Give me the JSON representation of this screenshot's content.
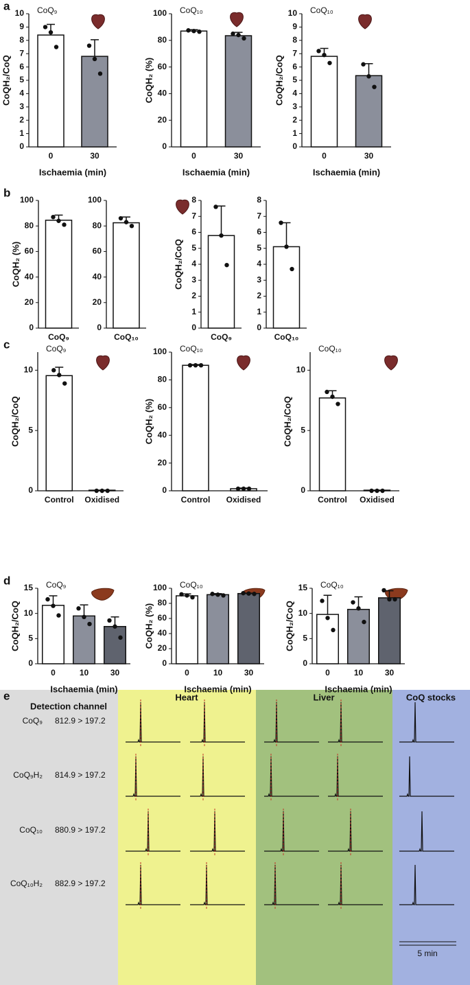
{
  "chart_data": [
    {
      "type": "bar",
      "panel": "a",
      "annotation": "CoQ₉",
      "icon": "heart",
      "ylabel": "CoQH₂/CoQ",
      "xlabel": "Ischaemia (min)",
      "categories": [
        "0",
        "30"
      ],
      "values": [
        8.4,
        6.8
      ],
      "errors": [
        0.8,
        1.25
      ],
      "points": [
        [
          9.0,
          8.6,
          7.5
        ],
        [
          7.6,
          6.6,
          5.5
        ]
      ],
      "colors": [
        "#ffffff",
        "#8b8f9b"
      ],
      "ylim": [
        0,
        10
      ],
      "yticks": [
        0,
        1,
        2,
        3,
        4,
        5,
        6,
        7,
        8,
        9,
        10
      ]
    },
    {
      "type": "bar",
      "annotation": "CoQ₁₀",
      "icon": "heart",
      "ylabel": "CoQH₂ (%)",
      "xlabel": "Ischaemia (min)",
      "categories": [
        "0",
        "30"
      ],
      "values": [
        87,
        83.5
      ],
      "errors": [
        1,
        2.5
      ],
      "points": [
        [
          87.5,
          87,
          86.5
        ],
        [
          85,
          84,
          81.5
        ]
      ],
      "colors": [
        "#ffffff",
        "#8b8f9b"
      ],
      "ylim": [
        0,
        100
      ],
      "yticks": [
        0,
        20,
        40,
        60,
        80,
        100
      ]
    },
    {
      "type": "bar",
      "annotation": "CoQ₁₀",
      "icon": "heart",
      "ylabel": "CoQH₂/CoQ",
      "xlabel": "Ischaemia (min)",
      "categories": [
        "0",
        "30"
      ],
      "values": [
        6.8,
        5.35
      ],
      "errors": [
        0.6,
        0.9
      ],
      "points": [
        [
          7.2,
          6.9,
          6.3
        ],
        [
          6.2,
          5.3,
          4.5
        ]
      ],
      "colors": [
        "#ffffff",
        "#8b8f9b"
      ],
      "ylim": [
        0,
        10
      ],
      "yticks": [
        0,
        1,
        2,
        3,
        4,
        5,
        6,
        7,
        8,
        9,
        10
      ]
    },
    {
      "type": "bar",
      "panel": "b",
      "ylabel": "CoQH₂ (%)",
      "categories": [
        "CoQ₉"
      ],
      "values": [
        84.5
      ],
      "errors": [
        4
      ],
      "points": [
        [
          87,
          84,
          81
        ]
      ],
      "colors": [
        "#ffffff"
      ],
      "ylim": [
        0,
        100
      ],
      "yticks": [
        0,
        20,
        40,
        60,
        80,
        100
      ]
    },
    {
      "type": "bar",
      "icon": "heart",
      "categories": [
        "CoQ₁₀"
      ],
      "values": [
        82.5
      ],
      "errors": [
        4.5
      ],
      "points": [
        [
          86,
          83,
          80
        ]
      ],
      "colors": [
        "#ffffff"
      ],
      "ylim": [
        0,
        100
      ],
      "yticks": [
        0,
        20,
        40,
        60,
        80,
        100
      ]
    },
    {
      "type": "bar",
      "ylabel": "CoQH₂/CoQ",
      "categories": [
        "CoQ₉"
      ],
      "values": [
        5.8
      ],
      "errors": [
        1.85
      ],
      "points": [
        [
          7.6,
          5.8,
          3.95
        ]
      ],
      "colors": [
        "#ffffff"
      ],
      "ylim": [
        0,
        8
      ],
      "yticks": [
        0,
        1,
        2,
        3,
        4,
        5,
        6,
        7,
        8
      ]
    },
    {
      "type": "bar",
      "categories": [
        "CoQ₁₀"
      ],
      "values": [
        5.1
      ],
      "errors": [
        1.5
      ],
      "points": [
        [
          6.6,
          5.1,
          3.7
        ]
      ],
      "colors": [
        "#ffffff"
      ],
      "ylim": [
        0,
        8
      ],
      "yticks": [
        0,
        1,
        2,
        3,
        4,
        5,
        6,
        7,
        8
      ]
    },
    {
      "type": "bar",
      "panel": "c",
      "annotation": "CoQ₉",
      "icon": "heart",
      "ylabel": "CoQH₂/CoQ",
      "categories": [
        "Control",
        "Oxidised"
      ],
      "values": [
        9.55,
        0.05
      ],
      "errors": [
        0.7,
        0
      ],
      "points": [
        [
          10,
          9.6,
          8.9
        ],
        [
          0,
          0,
          0
        ]
      ],
      "colors": [
        "#ffffff",
        "#ffffff"
      ],
      "ylim": [
        0,
        11.5
      ],
      "yticks": [
        0,
        5,
        10
      ]
    },
    {
      "type": "bar",
      "annotation": "CoQ₁₀",
      "icon": "heart",
      "ylabel": "CoQH₂ (%)",
      "categories": [
        "Control",
        "Oxidised"
      ],
      "values": [
        90.5,
        1.5
      ],
      "errors": [
        0.5,
        0.5
      ],
      "points": [
        [
          90.5,
          90.5,
          90.5
        ],
        [
          1.5,
          1.5,
          1.5
        ]
      ],
      "colors": [
        "#ffffff",
        "#ffffff"
      ],
      "ylim": [
        0,
        100
      ],
      "yticks": [
        0,
        20,
        40,
        60,
        80,
        100
      ]
    },
    {
      "type": "bar",
      "annotation": "CoQ₁₀",
      "icon": "heart",
      "ylabel": "CoQH₂/CoQ",
      "categories": [
        "Control",
        "Oxidised"
      ],
      "values": [
        7.7,
        0.05
      ],
      "errors": [
        0.6,
        0
      ],
      "points": [
        [
          8.2,
          7.8,
          7.2
        ],
        [
          0,
          0,
          0
        ]
      ],
      "colors": [
        "#ffffff",
        "#ffffff"
      ],
      "ylim": [
        0,
        11.5
      ],
      "yticks": [
        0,
        5,
        10
      ]
    },
    {
      "type": "bar",
      "panel": "d",
      "annotation": "CoQ₉",
      "icon": "liver",
      "ylabel": "CoQH₂/CoQ",
      "xlabel": "Ischaemia (min)",
      "categories": [
        "0",
        "10",
        "30"
      ],
      "values": [
        11.6,
        9.5,
        7.4
      ],
      "errors": [
        1.9,
        2.2,
        1.9
      ],
      "points": [
        [
          12.8,
          11.5,
          9.6
        ],
        [
          11,
          9.3,
          7.9
        ],
        [
          8.6,
          7.4,
          5.2
        ]
      ],
      "colors": [
        "#ffffff",
        "#8b8f9b",
        "#5f636e"
      ],
      "ylim": [
        0,
        15
      ],
      "yticks": [
        0,
        5,
        10,
        15
      ]
    },
    {
      "type": "bar",
      "annotation": "CoQ₁₀",
      "icon": "liver",
      "ylabel": "CoQH₂ (%)",
      "xlabel": "Ischaemia (min)",
      "categories": [
        "0",
        "10",
        "30"
      ],
      "values": [
        90,
        91.5,
        93
      ],
      "errors": [
        2.5,
        1.5,
        0.5
      ],
      "points": [
        [
          92,
          90.5,
          88
        ],
        [
          92.5,
          91.5,
          90.5
        ],
        [
          93.5,
          93,
          92.5
        ]
      ],
      "colors": [
        "#ffffff",
        "#8b8f9b",
        "#5f636e"
      ],
      "ylim": [
        0,
        100
      ],
      "yticks": [
        0,
        20,
        40,
        60,
        80,
        100
      ]
    },
    {
      "type": "bar",
      "annotation": "CoQ₁₀",
      "icon": "liver",
      "ylabel": "CoQH₂/CoQ",
      "xlabel": "Ischaemia (min)",
      "categories": [
        "0",
        "10",
        "30"
      ],
      "values": [
        9.8,
        10.8,
        13.1
      ],
      "errors": [
        3.8,
        2.5,
        1.4
      ],
      "points": [
        [
          12.5,
          9.1,
          6.7
        ],
        [
          12.2,
          11,
          8.3
        ],
        [
          14.6,
          12.8,
          12.8
        ]
      ],
      "colors": [
        "#ffffff",
        "#8b8f9b",
        "#5f636e"
      ],
      "ylim": [
        0,
        15
      ],
      "yticks": [
        0,
        5,
        10,
        15
      ]
    }
  ],
  "panel_e": {
    "panel": "e",
    "channel_header": "Detection channel",
    "columns": [
      "Heart",
      "Liver",
      "CoQ stocks"
    ],
    "rows": [
      {
        "analyte": "CoQ₉",
        "channel": "812.9 > 197.2"
      },
      {
        "analyte": "CoQ₉H₂",
        "channel": "814.9 > 197.2"
      },
      {
        "analyte": "CoQ₁₀",
        "channel": "880.9 > 197.2"
      },
      {
        "analyte": "CoQ₁₀H₂",
        "channel": "882.9 > 197.2"
      }
    ],
    "scale": "5 min"
  }
}
